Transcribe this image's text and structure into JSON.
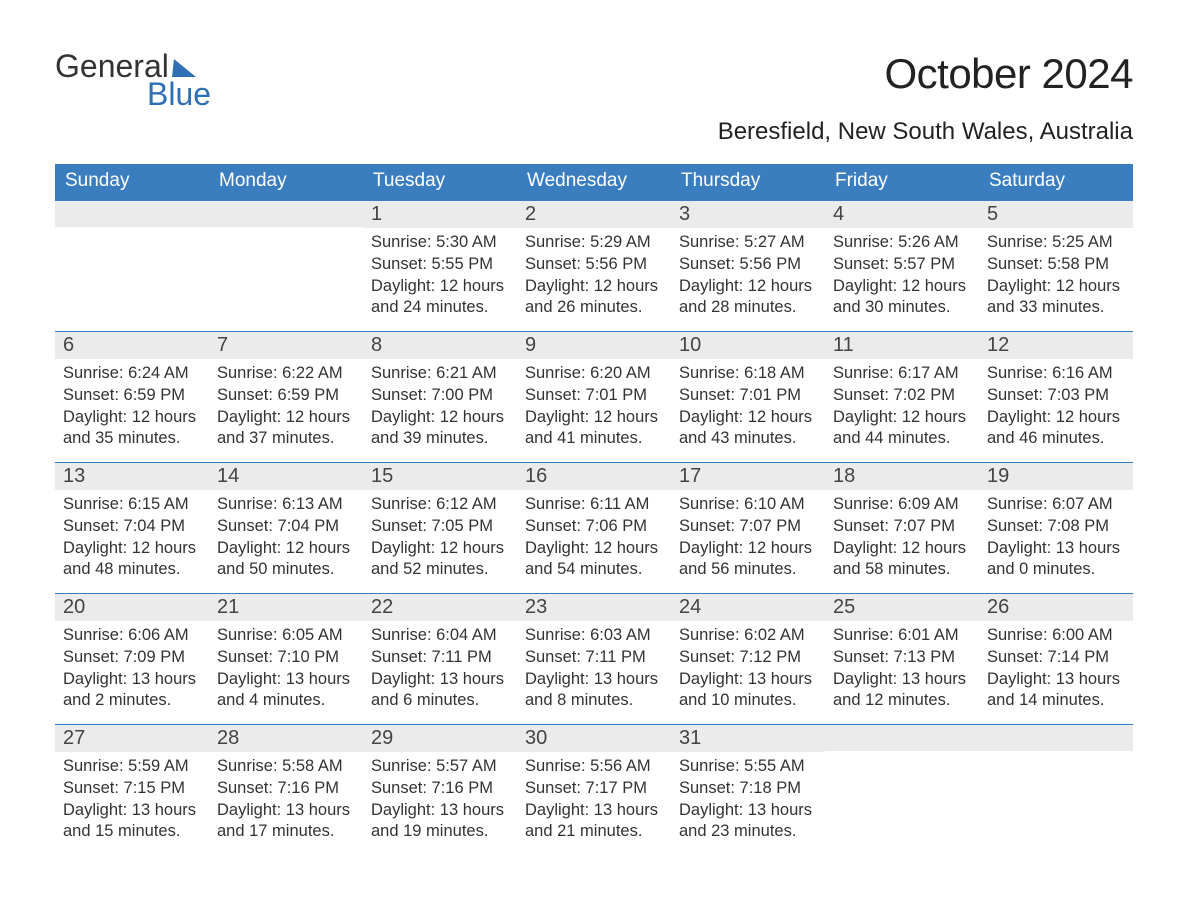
{
  "logo": {
    "word1": "General",
    "word2": "Blue"
  },
  "title": "October 2024",
  "subtitle": "Beresfield, New South Wales, Australia",
  "colors": {
    "header_bg": "#3b7ec0",
    "header_text": "#ffffff",
    "daynum_bg": "#ebebeb",
    "text": "#333333",
    "logo_accent": "#2f6fb4",
    "background": "#ffffff"
  },
  "weekdays": [
    "Sunday",
    "Monday",
    "Tuesday",
    "Wednesday",
    "Thursday",
    "Friday",
    "Saturday"
  ],
  "weeks": [
    [
      {
        "n": "",
        "sunrise": "",
        "sunset": "",
        "daylight1": "",
        "daylight2": ""
      },
      {
        "n": "",
        "sunrise": "",
        "sunset": "",
        "daylight1": "",
        "daylight2": ""
      },
      {
        "n": "1",
        "sunrise": "Sunrise: 5:30 AM",
        "sunset": "Sunset: 5:55 PM",
        "daylight1": "Daylight: 12 hours",
        "daylight2": "and 24 minutes."
      },
      {
        "n": "2",
        "sunrise": "Sunrise: 5:29 AM",
        "sunset": "Sunset: 5:56 PM",
        "daylight1": "Daylight: 12 hours",
        "daylight2": "and 26 minutes."
      },
      {
        "n": "3",
        "sunrise": "Sunrise: 5:27 AM",
        "sunset": "Sunset: 5:56 PM",
        "daylight1": "Daylight: 12 hours",
        "daylight2": "and 28 minutes."
      },
      {
        "n": "4",
        "sunrise": "Sunrise: 5:26 AM",
        "sunset": "Sunset: 5:57 PM",
        "daylight1": "Daylight: 12 hours",
        "daylight2": "and 30 minutes."
      },
      {
        "n": "5",
        "sunrise": "Sunrise: 5:25 AM",
        "sunset": "Sunset: 5:58 PM",
        "daylight1": "Daylight: 12 hours",
        "daylight2": "and 33 minutes."
      }
    ],
    [
      {
        "n": "6",
        "sunrise": "Sunrise: 6:24 AM",
        "sunset": "Sunset: 6:59 PM",
        "daylight1": "Daylight: 12 hours",
        "daylight2": "and 35 minutes."
      },
      {
        "n": "7",
        "sunrise": "Sunrise: 6:22 AM",
        "sunset": "Sunset: 6:59 PM",
        "daylight1": "Daylight: 12 hours",
        "daylight2": "and 37 minutes."
      },
      {
        "n": "8",
        "sunrise": "Sunrise: 6:21 AM",
        "sunset": "Sunset: 7:00 PM",
        "daylight1": "Daylight: 12 hours",
        "daylight2": "and 39 minutes."
      },
      {
        "n": "9",
        "sunrise": "Sunrise: 6:20 AM",
        "sunset": "Sunset: 7:01 PM",
        "daylight1": "Daylight: 12 hours",
        "daylight2": "and 41 minutes."
      },
      {
        "n": "10",
        "sunrise": "Sunrise: 6:18 AM",
        "sunset": "Sunset: 7:01 PM",
        "daylight1": "Daylight: 12 hours",
        "daylight2": "and 43 minutes."
      },
      {
        "n": "11",
        "sunrise": "Sunrise: 6:17 AM",
        "sunset": "Sunset: 7:02 PM",
        "daylight1": "Daylight: 12 hours",
        "daylight2": "and 44 minutes."
      },
      {
        "n": "12",
        "sunrise": "Sunrise: 6:16 AM",
        "sunset": "Sunset: 7:03 PM",
        "daylight1": "Daylight: 12 hours",
        "daylight2": "and 46 minutes."
      }
    ],
    [
      {
        "n": "13",
        "sunrise": "Sunrise: 6:15 AM",
        "sunset": "Sunset: 7:04 PM",
        "daylight1": "Daylight: 12 hours",
        "daylight2": "and 48 minutes."
      },
      {
        "n": "14",
        "sunrise": "Sunrise: 6:13 AM",
        "sunset": "Sunset: 7:04 PM",
        "daylight1": "Daylight: 12 hours",
        "daylight2": "and 50 minutes."
      },
      {
        "n": "15",
        "sunrise": "Sunrise: 6:12 AM",
        "sunset": "Sunset: 7:05 PM",
        "daylight1": "Daylight: 12 hours",
        "daylight2": "and 52 minutes."
      },
      {
        "n": "16",
        "sunrise": "Sunrise: 6:11 AM",
        "sunset": "Sunset: 7:06 PM",
        "daylight1": "Daylight: 12 hours",
        "daylight2": "and 54 minutes."
      },
      {
        "n": "17",
        "sunrise": "Sunrise: 6:10 AM",
        "sunset": "Sunset: 7:07 PM",
        "daylight1": "Daylight: 12 hours",
        "daylight2": "and 56 minutes."
      },
      {
        "n": "18",
        "sunrise": "Sunrise: 6:09 AM",
        "sunset": "Sunset: 7:07 PM",
        "daylight1": "Daylight: 12 hours",
        "daylight2": "and 58 minutes."
      },
      {
        "n": "19",
        "sunrise": "Sunrise: 6:07 AM",
        "sunset": "Sunset: 7:08 PM",
        "daylight1": "Daylight: 13 hours",
        "daylight2": "and 0 minutes."
      }
    ],
    [
      {
        "n": "20",
        "sunrise": "Sunrise: 6:06 AM",
        "sunset": "Sunset: 7:09 PM",
        "daylight1": "Daylight: 13 hours",
        "daylight2": "and 2 minutes."
      },
      {
        "n": "21",
        "sunrise": "Sunrise: 6:05 AM",
        "sunset": "Sunset: 7:10 PM",
        "daylight1": "Daylight: 13 hours",
        "daylight2": "and 4 minutes."
      },
      {
        "n": "22",
        "sunrise": "Sunrise: 6:04 AM",
        "sunset": "Sunset: 7:11 PM",
        "daylight1": "Daylight: 13 hours",
        "daylight2": "and 6 minutes."
      },
      {
        "n": "23",
        "sunrise": "Sunrise: 6:03 AM",
        "sunset": "Sunset: 7:11 PM",
        "daylight1": "Daylight: 13 hours",
        "daylight2": "and 8 minutes."
      },
      {
        "n": "24",
        "sunrise": "Sunrise: 6:02 AM",
        "sunset": "Sunset: 7:12 PM",
        "daylight1": "Daylight: 13 hours",
        "daylight2": "and 10 minutes."
      },
      {
        "n": "25",
        "sunrise": "Sunrise: 6:01 AM",
        "sunset": "Sunset: 7:13 PM",
        "daylight1": "Daylight: 13 hours",
        "daylight2": "and 12 minutes."
      },
      {
        "n": "26",
        "sunrise": "Sunrise: 6:00 AM",
        "sunset": "Sunset: 7:14 PM",
        "daylight1": "Daylight: 13 hours",
        "daylight2": "and 14 minutes."
      }
    ],
    [
      {
        "n": "27",
        "sunrise": "Sunrise: 5:59 AM",
        "sunset": "Sunset: 7:15 PM",
        "daylight1": "Daylight: 13 hours",
        "daylight2": "and 15 minutes."
      },
      {
        "n": "28",
        "sunrise": "Sunrise: 5:58 AM",
        "sunset": "Sunset: 7:16 PM",
        "daylight1": "Daylight: 13 hours",
        "daylight2": "and 17 minutes."
      },
      {
        "n": "29",
        "sunrise": "Sunrise: 5:57 AM",
        "sunset": "Sunset: 7:16 PM",
        "daylight1": "Daylight: 13 hours",
        "daylight2": "and 19 minutes."
      },
      {
        "n": "30",
        "sunrise": "Sunrise: 5:56 AM",
        "sunset": "Sunset: 7:17 PM",
        "daylight1": "Daylight: 13 hours",
        "daylight2": "and 21 minutes."
      },
      {
        "n": "31",
        "sunrise": "Sunrise: 5:55 AM",
        "sunset": "Sunset: 7:18 PM",
        "daylight1": "Daylight: 13 hours",
        "daylight2": "and 23 minutes."
      },
      {
        "n": "",
        "sunrise": "",
        "sunset": "",
        "daylight1": "",
        "daylight2": ""
      },
      {
        "n": "",
        "sunrise": "",
        "sunset": "",
        "daylight1": "",
        "daylight2": ""
      }
    ]
  ]
}
